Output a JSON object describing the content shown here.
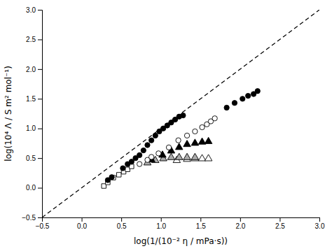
{
  "chart_data": {
    "type": "scatter",
    "xlabel": "log(1/(10⁻² η / mPa·s))",
    "ylabel": "log(10⁴ Λ / S m² mol⁻¹)",
    "xlim": [
      -0.5,
      3.0
    ],
    "ylim": [
      -0.5,
      3.0
    ],
    "xticks": [
      {
        "value": -0.5,
        "label": "−0.5"
      },
      {
        "value": 0.0,
        "label": "0.0"
      },
      0.5,
      {
        "value": 1.0,
        "label": "1.0"
      },
      1.5,
      {
        "value": 2.0,
        "label": "2.0"
      },
      2.5,
      {
        "value": 3.0,
        "label": "3.0"
      }
    ],
    "yticks": [
      {
        "value": -0.5,
        "label": "−0.5"
      },
      {
        "value": 0.0,
        "label": "0.0"
      },
      0.5,
      {
        "value": 1.0,
        "label": "1.0"
      },
      1.5,
      {
        "value": 2.0,
        "label": "2.0"
      },
      2.5,
      {
        "value": 3.0,
        "label": "3.0"
      }
    ],
    "grid": false,
    "series": [
      {
        "type": "line",
        "line_style": "dashed",
        "color": "black",
        "x": [
          -0.5,
          3.0
        ],
        "values": [
          -0.5,
          3.0
        ]
      },
      {
        "type": "scatter",
        "marker": "square",
        "color": "white",
        "x": [
          0.28,
          0.33,
          0.4,
          0.47,
          0.53,
          0.58,
          0.63
        ],
        "values": [
          0.03,
          0.09,
          0.17,
          0.22,
          0.27,
          0.31,
          0.36
        ]
      },
      {
        "type": "scatter",
        "marker": "triangle",
        "color": "white",
        "x": [
          1.2,
          1.33,
          1.43,
          1.52,
          1.6
        ],
        "values": [
          0.46,
          0.48,
          0.49,
          0.49,
          0.49
        ]
      },
      {
        "type": "scatter",
        "marker": "triangle",
        "color": "#aaaaaa",
        "x": [
          0.83,
          0.93,
          1.03,
          1.13,
          1.23,
          1.33,
          1.43
        ],
        "values": [
          0.42,
          0.46,
          0.49,
          0.51,
          0.51,
          0.51,
          0.51
        ]
      },
      {
        "type": "scatter",
        "marker": "triangle",
        "color": "black",
        "x": [
          0.88,
          1.02,
          1.13,
          1.23,
          1.33,
          1.43,
          1.52,
          1.6
        ],
        "values": [
          0.47,
          0.55,
          0.62,
          0.68,
          0.73,
          0.75,
          0.77,
          0.78
        ]
      },
      {
        "type": "scatter",
        "marker": "circle",
        "color": "white",
        "x": [
          0.73,
          0.83,
          0.88,
          0.97,
          1.1,
          1.22,
          1.33,
          1.43,
          1.52,
          1.58,
          1.63,
          1.68
        ],
        "values": [
          0.4,
          0.47,
          0.52,
          0.58,
          0.68,
          0.8,
          0.88,
          0.95,
          1.02,
          1.07,
          1.12,
          1.17
        ]
      },
      {
        "type": "scatter",
        "marker": "circle",
        "color": "black",
        "x": [
          0.33,
          0.38,
          0.52,
          0.58,
          0.63,
          0.68,
          0.73,
          0.78,
          0.83,
          0.88,
          0.93,
          0.98,
          1.03,
          1.08,
          1.13,
          1.18,
          1.23,
          1.28,
          1.83,
          1.93,
          2.03,
          2.1,
          2.17,
          2.22
        ],
        "values": [
          0.13,
          0.18,
          0.33,
          0.4,
          0.44,
          0.5,
          0.55,
          0.63,
          0.72,
          0.8,
          0.88,
          0.95,
          1.0,
          1.05,
          1.1,
          1.15,
          1.2,
          1.22,
          1.35,
          1.43,
          1.5,
          1.55,
          1.58,
          1.63
        ]
      }
    ]
  }
}
